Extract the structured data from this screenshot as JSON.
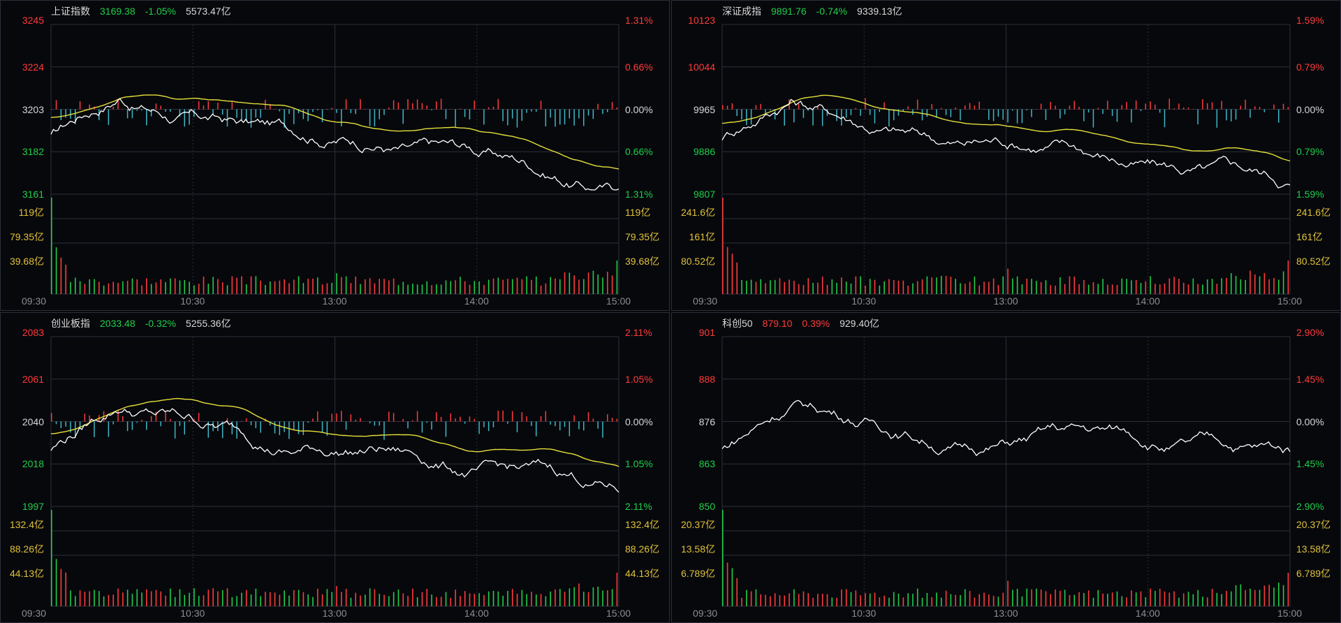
{
  "colors": {
    "up": "#ff3b3b",
    "down": "#1fcf4a",
    "neutral": "#d8d8d8",
    "volume_label": "#e0c23a",
    "price_line": "#ffffff",
    "avg_line": "#e6e03a",
    "bar_down": "#3fb8c8",
    "grid": "#2b2f3a"
  },
  "time_axis": [
    "09:30",
    "10:30",
    "13:00",
    "14:00",
    "15:00"
  ],
  "panels": [
    {
      "name": "上证指数",
      "price": "3169.38",
      "change": "-1.05%",
      "change_dir": "down",
      "turnover": "5573.47亿",
      "price_labels": [
        "3245",
        "3224",
        "3203",
        "3182",
        "3161"
      ],
      "pct_labels": [
        "1.31%",
        "0.66%",
        "0.00%",
        "0.66%",
        "1.31%"
      ],
      "vol_labels": [
        "119亿",
        "79.35亿",
        "39.68亿"
      ],
      "has_avg": true,
      "has_macd": true
    },
    {
      "name": "深证成指",
      "price": "9891.76",
      "change": "-0.74%",
      "change_dir": "down",
      "turnover": "9339.13亿",
      "price_labels": [
        "10123",
        "10044",
        "9965",
        "9886",
        "9807"
      ],
      "pct_labels": [
        "1.59%",
        "0.79%",
        "0.00%",
        "0.79%",
        "1.59%"
      ],
      "vol_labels": [
        "241.6亿",
        "161亿",
        "80.52亿"
      ],
      "has_avg": true,
      "has_macd": true
    },
    {
      "name": "创业板指",
      "price": "2033.48",
      "change": "-0.32%",
      "change_dir": "down",
      "turnover": "5255.36亿",
      "price_labels": [
        "2083",
        "2061",
        "2040",
        "2018",
        "1997"
      ],
      "pct_labels": [
        "2.11%",
        "1.05%",
        "0.00%",
        "1.05%",
        "2.11%"
      ],
      "vol_labels": [
        "132.4亿",
        "88.26亿",
        "44.13亿"
      ],
      "has_avg": true,
      "has_macd": true
    },
    {
      "name": "科创50",
      "price": "879.10",
      "change": "0.39%",
      "change_dir": "up",
      "turnover": "929.40亿",
      "price_labels": [
        "901",
        "888",
        "876",
        "863",
        "850"
      ],
      "pct_labels": [
        "2.90%",
        "1.45%",
        "0.00%",
        "1.45%",
        "2.90%"
      ],
      "vol_labels": [
        "20.37亿",
        "13.58亿",
        "6.789亿"
      ],
      "has_avg": false,
      "has_macd": false
    }
  ]
}
